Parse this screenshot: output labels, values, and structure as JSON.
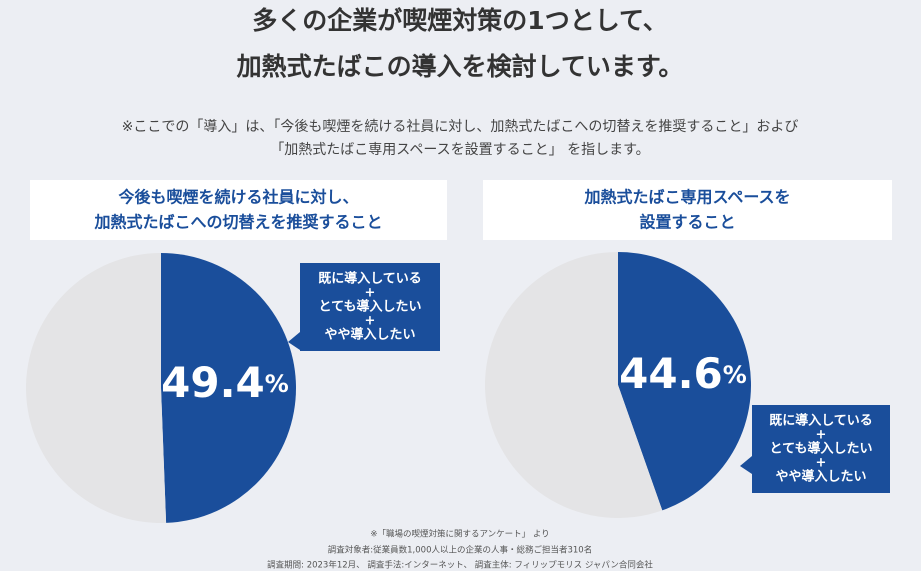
{
  "header": {
    "title": [
      "多くの企業が喫煙対策の1つとして、",
      "加熱式たばこの導入を検討しています。"
    ],
    "note": [
      "※ここでの「導入」は、「今後も喫煙を続ける社員に対し、加熱式たばこへの切替えを推奨すること」および",
      "「加熱式たばこ専用スペースを設置すること」 を指します。"
    ]
  },
  "chart_data": [
    {
      "type": "pie",
      "title": [
        "今後も喫煙を続ける社員に対し、",
        "加熱式たばこへの切替えを推奨すること"
      ],
      "categories": [
        "既に導入している+とても導入したい+やや導入したい",
        null
      ],
      "values": [
        49.4,
        50.6
      ],
      "value_labels": [
        "49.4%",
        null
      ],
      "colors": [
        "#1a4e9b",
        "#e4e4e6"
      ],
      "callout": [
        "既に導入している",
        "+",
        "とても導入したい",
        "+",
        "やや導入したい"
      ]
    },
    {
      "type": "pie",
      "title": [
        "加熱式たばこ専用スペースを",
        "設置すること"
      ],
      "categories": [
        "既に導入している+とても導入したい+やや導入したい",
        null
      ],
      "values": [
        44.6,
        55.4
      ],
      "value_labels": [
        "44.6%",
        null
      ],
      "colors": [
        "#1a4e9b",
        "#e4e4e6"
      ],
      "callout": [
        "既に導入している",
        "+",
        "とても導入したい",
        "+",
        "やや導入したい"
      ]
    }
  ],
  "footer": [
    "※「職場の喫煙対策に関するアンケート」 より",
    "調査対象者:従業員数1,000人以上の企業の人事・総務ご担当者310名",
    "調査期間: 2023年12月、 調査手法:インターネット、 調査主体: フィリップモリス ジャパン合同会社"
  ]
}
